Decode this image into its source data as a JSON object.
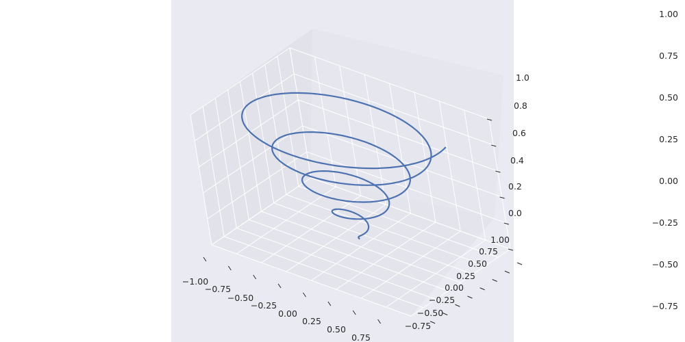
{
  "chart_data": {
    "type": "line",
    "projection": "3d",
    "style": "seaborn-darkgrid",
    "colors": {
      "figure_background": "#ffffff",
      "axes_background": "#eaeaf2",
      "pane": "#e3e3eb",
      "grid": "#ffffff",
      "line": "#4c72b0"
    },
    "title": "",
    "xlabel": "",
    "ylabel": "",
    "zlabel": "",
    "grid": true,
    "legend": false,
    "xlim": [
      -1.0,
      1.0
    ],
    "ylim": [
      -1.0,
      1.0
    ],
    "zlim": [
      0.0,
      1.0
    ],
    "x_ticks": [
      "−1.00",
      "−0.75",
      "−0.50",
      "−0.25",
      "0.00",
      "0.25",
      "0.50",
      "0.75"
    ],
    "y_ticks": [
      "−0.75",
      "−0.50",
      "−0.25",
      "0.00",
      "0.25",
      "0.50",
      "0.75",
      "1.00"
    ],
    "z_ticks": [
      "0.0",
      "0.2",
      "0.4",
      "0.6",
      "0.8",
      "1.0"
    ],
    "series": [
      {
        "t_range": [
          0,
          1
        ],
        "turns": 4.35,
        "radius": "r = z",
        "z": "t"
      }
    ],
    "side_axis": {
      "y_ticks": [
        "1.00",
        "0.75",
        "0.50",
        "0.25",
        "0.00",
        "−0.25",
        "−0.50",
        "−0.75"
      ]
    }
  }
}
